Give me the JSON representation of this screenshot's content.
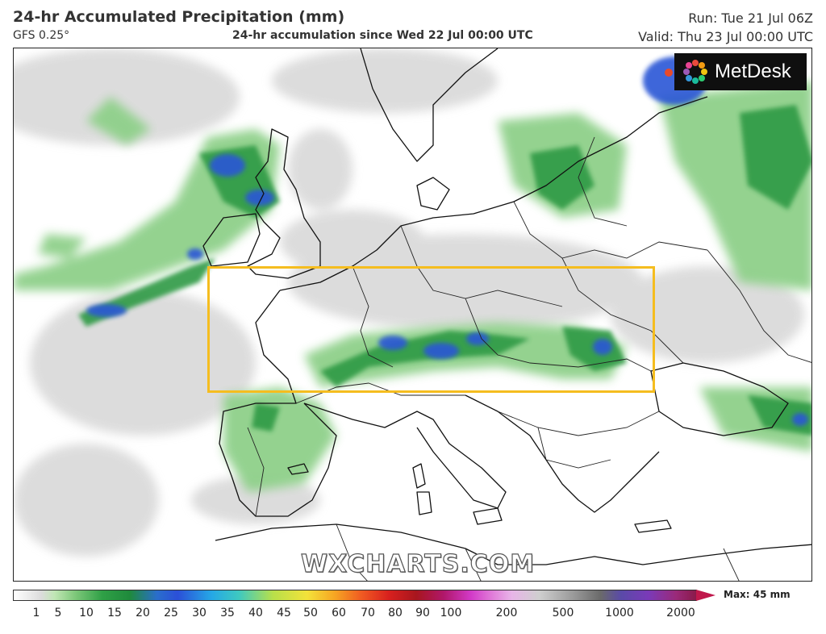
{
  "header": {
    "title": "24-hr Accumulated Precipitation (mm)",
    "model": "GFS 0.25°",
    "subtitle": "24-hr accumulation since Wed 22 Jul 00:00 UTC",
    "run": "Run: Tue 21 Jul 06Z",
    "valid": "Valid: Thu 23 Jul 00:00 UTC"
  },
  "logo": {
    "text": "MetDesk",
    "icon": "metdesk-logo-icon"
  },
  "watermark": "WXCHARTS.COM",
  "highlight": {
    "color": "#f5bd1f"
  },
  "legend": {
    "max_label": "Max: 45 mm",
    "ticks": [
      "1",
      "5",
      "10",
      "15",
      "20",
      "25",
      "30",
      "35",
      "40",
      "45",
      "50",
      "60",
      "70",
      "80",
      "90",
      "100",
      "200",
      "500",
      "1000",
      "2000"
    ]
  },
  "colors": {
    "light_precip": "#d8d8d8",
    "low": "#8fd08a",
    "mid": "#2f9a45",
    "high": "#2b56d6",
    "peak": "#e84a2a"
  }
}
